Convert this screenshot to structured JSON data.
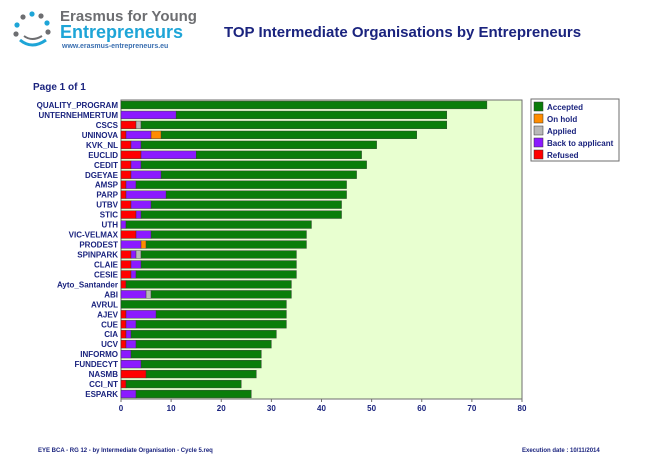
{
  "brand": {
    "line1": "Erasmus for Young",
    "line2": "Entrepreneurs",
    "url": "www.erasmus-entrepreneurs.eu",
    "logo_icon": "people-circle-logo-icon"
  },
  "report_title": "TOP  Intermediate Organisations by Entrepreneurs",
  "page_label": "Page 1 of 1",
  "footer": {
    "left": "EYE BCA - RG 12 - by Intermediate Organisation - Cycle 5.req",
    "right": "Execution date : 10/11/2014"
  },
  "chart_data": {
    "type": "bar",
    "orientation": "horizontal",
    "stacked": true,
    "xlim": [
      0,
      80
    ],
    "xticks": [
      0,
      10,
      20,
      30,
      40,
      50,
      60,
      70,
      80
    ],
    "plot_background": "#e8ffd0",
    "legend_position": "top-right",
    "categories": [
      "QUALITY_PROGRAM",
      "UNTERNEHMERTUM",
      "CSCS",
      "UNINOVA",
      "KVK_NL",
      "EUCLID",
      "CEDIT",
      "DGEYAE",
      "AMSP",
      "PARP",
      "UTBV",
      "STIC",
      "UTH",
      "VIC-VELMAX",
      "PRODEST",
      "SPINPARK",
      "CLAIE",
      "CESIE",
      "Ayto_Santander",
      "ABI",
      "AVRUL",
      "AJEV",
      "CUE",
      "CIA",
      "UCV",
      "INFORMO",
      "FUNDECYT",
      "NASMB",
      "CCI_NT",
      "ESPARK"
    ],
    "series": [
      {
        "name": "Refused",
        "color": "#ff0000",
        "values": [
          0,
          0,
          3,
          1,
          2,
          4,
          2,
          2,
          1,
          1,
          2,
          3,
          0,
          3,
          0,
          2,
          2,
          2,
          1,
          0,
          0,
          1,
          1,
          1,
          1,
          0,
          0,
          5,
          1,
          0
        ]
      },
      {
        "name": "Back to applicant",
        "color": "#8b1aff",
        "values": [
          0,
          11,
          0,
          5,
          2,
          11,
          2,
          6,
          2,
          8,
          4,
          1,
          1,
          3,
          4,
          1,
          2,
          1,
          0,
          5,
          0,
          6,
          2,
          1,
          2,
          2,
          4,
          0,
          0,
          3
        ]
      },
      {
        "name": "Applied",
        "color": "#b8b8b8",
        "values": [
          0,
          0,
          1,
          0,
          0,
          0,
          0,
          0,
          0,
          0,
          0,
          0,
          0,
          0,
          0,
          1,
          0,
          0,
          0,
          1,
          0,
          0,
          0,
          0,
          0,
          0,
          0,
          0,
          0,
          0
        ]
      },
      {
        "name": "On hold",
        "color": "#ff8c00",
        "values": [
          0,
          0,
          0,
          2,
          0,
          0,
          0,
          0,
          0,
          0,
          0,
          0,
          0,
          0,
          1,
          0,
          0,
          0,
          0,
          0,
          0,
          0,
          0,
          0,
          0,
          0,
          0,
          0,
          0,
          0
        ]
      },
      {
        "name": "Accepted",
        "color": "#0a7d0a",
        "values": [
          73,
          54,
          61,
          51,
          47,
          33,
          45,
          39,
          42,
          36,
          38,
          40,
          37,
          31,
          32,
          31,
          31,
          32,
          33,
          28,
          33,
          26,
          30,
          29,
          27,
          26,
          24,
          22,
          23,
          23
        ]
      }
    ],
    "legend_order": [
      "Accepted",
      "On hold",
      "Applied",
      "Back to applicant",
      "Refused"
    ]
  }
}
